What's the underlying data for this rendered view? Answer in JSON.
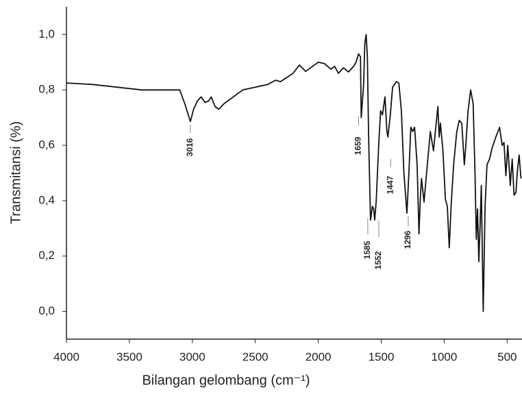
{
  "chart_data": {
    "type": "line",
    "x_label": "Bilangan gelombang (cm⁻¹)",
    "y_label": "Transmitansi (%)",
    "xlim": [
      4000,
      382
    ],
    "ylim": [
      -0.1,
      1.1
    ],
    "xticks": [
      4000,
      3500,
      3000,
      2500,
      2000,
      1500,
      1000,
      500
    ],
    "yticks": [
      {
        "value": 0.0,
        "label": "0,0"
      },
      {
        "value": 0.2,
        "label": "0,2"
      },
      {
        "value": 0.4,
        "label": "0,4"
      },
      {
        "value": 0.6,
        "label": "0,6"
      },
      {
        "value": 0.8,
        "label": "0,8"
      },
      {
        "value": 1.0,
        "label": "1,0"
      }
    ],
    "color": "#111111",
    "x": [
      4000,
      3800,
      3600,
      3400,
      3200,
      3100,
      3060,
      3016,
      2990,
      2960,
      2930,
      2900,
      2870,
      2850,
      2820,
      2790,
      2750,
      2600,
      2400,
      2340,
      2300,
      2200,
      2150,
      2100,
      2000,
      1950,
      1900,
      1870,
      1840,
      1800,
      1760,
      1720,
      1700,
      1680,
      1665,
      1659,
      1640,
      1630,
      1620,
      1610,
      1600,
      1585,
      1570,
      1560,
      1552,
      1540,
      1520,
      1505,
      1490,
      1470,
      1455,
      1447,
      1430,
      1410,
      1380,
      1360,
      1340,
      1320,
      1296,
      1280,
      1265,
      1250,
      1235,
      1215,
      1200,
      1190,
      1180,
      1160,
      1140,
      1110,
      1085,
      1065,
      1050,
      1040,
      1030,
      1010,
      990,
      975,
      960,
      945,
      925,
      900,
      880,
      860,
      840,
      830,
      810,
      790,
      770,
      755,
      745,
      735,
      725,
      715,
      705,
      690,
      675,
      660,
      640,
      620,
      590,
      560,
      540,
      525,
      510,
      495,
      475,
      460,
      445,
      430,
      420,
      405,
      390
    ],
    "values": [
      0.825,
      0.82,
      0.81,
      0.8,
      0.8,
      0.8,
      0.75,
      0.686,
      0.73,
      0.76,
      0.775,
      0.755,
      0.76,
      0.775,
      0.74,
      0.73,
      0.75,
      0.8,
      0.82,
      0.835,
      0.83,
      0.86,
      0.89,
      0.867,
      0.9,
      0.895,
      0.875,
      0.885,
      0.86,
      0.88,
      0.865,
      0.885,
      0.9,
      0.93,
      0.92,
      0.7,
      0.82,
      0.97,
      1.0,
      0.92,
      0.63,
      0.33,
      0.38,
      0.37,
      0.33,
      0.4,
      0.6,
      0.725,
      0.71,
      0.775,
      0.65,
      0.63,
      0.7,
      0.81,
      0.83,
      0.825,
      0.725,
      0.5,
      0.355,
      0.5,
      0.665,
      0.65,
      0.665,
      0.53,
      0.28,
      0.405,
      0.48,
      0.395,
      0.5,
      0.65,
      0.58,
      0.675,
      0.74,
      0.63,
      0.68,
      0.58,
      0.405,
      0.38,
      0.23,
      0.38,
      0.53,
      0.65,
      0.69,
      0.68,
      0.53,
      0.59,
      0.725,
      0.8,
      0.75,
      0.5,
      0.26,
      0.37,
      0.18,
      0.31,
      0.455,
      0.0,
      0.38,
      0.53,
      0.55,
      0.59,
      0.63,
      0.665,
      0.6,
      0.61,
      0.49,
      0.6,
      0.455,
      0.55,
      0.42,
      0.43,
      0.5,
      0.565,
      0.48
    ],
    "annotations": [
      3016,
      1659,
      1585,
      1552,
      1447,
      1296
    ]
  }
}
